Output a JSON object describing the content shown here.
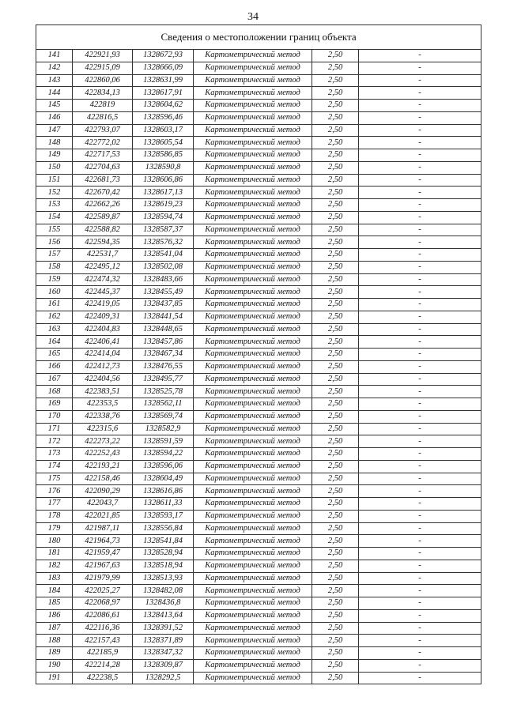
{
  "page_number": "34",
  "table": {
    "title": "Сведения о местоположении границ объекта",
    "method": "Картометрический метод",
    "accuracy": "2,50",
    "note": "-",
    "rows": [
      [
        "141",
        "422921,93",
        "1328672,93"
      ],
      [
        "142",
        "422915,09",
        "1328666,09"
      ],
      [
        "143",
        "422860,06",
        "1328631,99"
      ],
      [
        "144",
        "422834,13",
        "1328617,91"
      ],
      [
        "145",
        "422819",
        "1328604,62"
      ],
      [
        "146",
        "422816,5",
        "1328596,46"
      ],
      [
        "147",
        "422793,07",
        "1328603,17"
      ],
      [
        "148",
        "422772,02",
        "1328605,54"
      ],
      [
        "149",
        "422717,53",
        "1328586,85"
      ],
      [
        "150",
        "422704,63",
        "1328590,8"
      ],
      [
        "151",
        "422681,73",
        "1328606,86"
      ],
      [
        "152",
        "422670,42",
        "1328617,13"
      ],
      [
        "153",
        "422662,26",
        "1328619,23"
      ],
      [
        "154",
        "422589,87",
        "1328594,74"
      ],
      [
        "155",
        "422588,82",
        "1328587,37"
      ],
      [
        "156",
        "422594,35",
        "1328576,32"
      ],
      [
        "157",
        "422531,7",
        "1328541,04"
      ],
      [
        "158",
        "422495,12",
        "1328502,08"
      ],
      [
        "159",
        "422474,32",
        "1328483,66"
      ],
      [
        "160",
        "422445,37",
        "1328455,49"
      ],
      [
        "161",
        "422419,05",
        "1328437,85"
      ],
      [
        "162",
        "422409,31",
        "1328441,54"
      ],
      [
        "163",
        "422404,83",
        "1328448,65"
      ],
      [
        "164",
        "422406,41",
        "1328457,86"
      ],
      [
        "165",
        "422414,04",
        "1328467,34"
      ],
      [
        "166",
        "422412,73",
        "1328476,55"
      ],
      [
        "167",
        "422404,56",
        "1328495,77"
      ],
      [
        "168",
        "422383,51",
        "1328525,78"
      ],
      [
        "169",
        "422353,5",
        "1328562,11"
      ],
      [
        "170",
        "422338,76",
        "1328569,74"
      ],
      [
        "171",
        "422315,6",
        "1328582,9"
      ],
      [
        "172",
        "422273,22",
        "1328591,59"
      ],
      [
        "173",
        "422252,43",
        "1328594,22"
      ],
      [
        "174",
        "422193,21",
        "1328596,06"
      ],
      [
        "175",
        "422158,46",
        "1328604,49"
      ],
      [
        "176",
        "422090,29",
        "1328616,86"
      ],
      [
        "177",
        "422043,7",
        "1328611,33"
      ],
      [
        "178",
        "422021,85",
        "1328593,17"
      ],
      [
        "179",
        "421987,11",
        "1328556,84"
      ],
      [
        "180",
        "421964,73",
        "1328541,84"
      ],
      [
        "181",
        "421959,47",
        "1328528,94"
      ],
      [
        "182",
        "421967,63",
        "1328518,94"
      ],
      [
        "183",
        "421979,99",
        "1328513,93"
      ],
      [
        "184",
        "422025,27",
        "1328482,08"
      ],
      [
        "185",
        "422068,97",
        "1328436,8"
      ],
      [
        "186",
        "422086,61",
        "1328413,64"
      ],
      [
        "187",
        "422116,36",
        "1328391,52"
      ],
      [
        "188",
        "422157,43",
        "1328371,89"
      ],
      [
        "189",
        "422185,9",
        "1328347,32"
      ],
      [
        "190",
        "422214,28",
        "1328309,87"
      ],
      [
        "191",
        "422238,5",
        "1328292,5"
      ]
    ]
  }
}
